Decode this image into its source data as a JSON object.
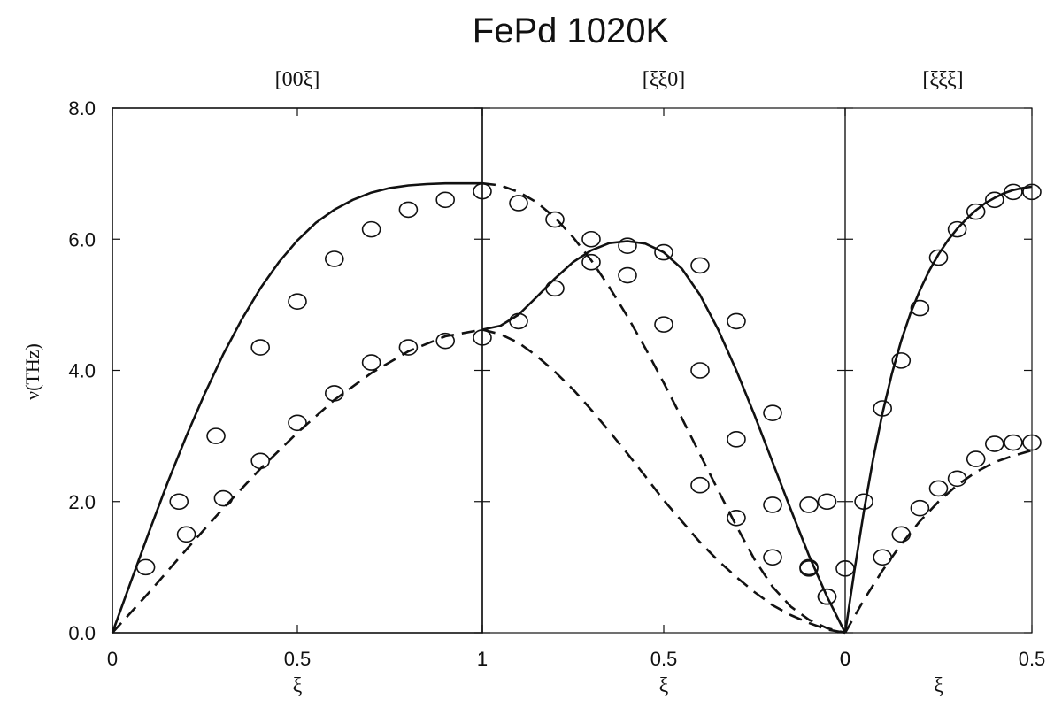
{
  "chart_data": {
    "type": "scatter",
    "title": "FePd 1020K",
    "ylabel": "ν(THz)",
    "ylim": [
      0,
      8
    ],
    "yticks": [
      "0.0",
      "2.0",
      "4.0",
      "6.0",
      "8.0"
    ],
    "grid": false,
    "legend": "none",
    "panels": [
      {
        "label": "[00ξ]",
        "xlabel": "ξ",
        "xlim": [
          0,
          1
        ],
        "xtick_labels": [
          "0",
          "0.5",
          "1"
        ],
        "series": [
          {
            "style": "solid",
            "x": [
              0,
              0.05,
              0.1,
              0.15,
              0.2,
              0.25,
              0.3,
              0.35,
              0.4,
              0.45,
              0.5,
              0.55,
              0.6,
              0.65,
              0.7,
              0.75,
              0.8,
              0.85,
              0.9,
              0.95,
              1.0
            ],
            "y": [
              0,
              0.78,
              1.55,
              2.3,
              3.0,
              3.65,
              4.25,
              4.78,
              5.25,
              5.65,
              5.98,
              6.25,
              6.45,
              6.6,
              6.71,
              6.78,
              6.82,
              6.84,
              6.85,
              6.85,
              6.85
            ]
          },
          {
            "style": "dashed",
            "x": [
              0,
              0.1,
              0.2,
              0.3,
              0.4,
              0.5,
              0.6,
              0.7,
              0.8,
              0.9,
              1.0
            ],
            "y": [
              0,
              0.62,
              1.27,
              1.9,
              2.5,
              3.05,
              3.55,
              3.96,
              4.29,
              4.52,
              4.62
            ]
          },
          {
            "style": "circle",
            "x": [
              0.09,
              0.18,
              0.28,
              0.4,
              0.5,
              0.6,
              0.7,
              0.8,
              0.9,
              1.0
            ],
            "y": [
              1.0,
              2.0,
              3.0,
              4.35,
              5.05,
              5.7,
              6.15,
              6.45,
              6.6,
              6.73
            ]
          },
          {
            "style": "circle",
            "x": [
              0.2,
              0.3,
              0.4,
              0.5,
              0.6,
              0.7,
              0.8,
              0.9,
              1.0
            ],
            "y": [
              1.5,
              2.05,
              2.62,
              3.2,
              3.65,
              4.12,
              4.35,
              4.45,
              4.5
            ]
          }
        ]
      },
      {
        "label": "[ξξ0]",
        "xlabel": "ξ",
        "xlim": [
          1,
          0
        ],
        "xtick_labels": [
          "1",
          "0.5",
          "0"
        ],
        "series": [
          {
            "style": "dashed",
            "x": [
              1.0,
              0.95,
              0.9,
              0.85,
              0.8,
              0.75,
              0.7,
              0.65,
              0.6,
              0.55,
              0.5,
              0.45,
              0.4,
              0.35,
              0.3,
              0.25,
              0.2,
              0.15,
              0.1,
              0.05,
              0.0
            ],
            "y": [
              6.85,
              6.82,
              6.72,
              6.56,
              6.33,
              6.03,
              5.68,
              5.27,
              4.82,
              4.33,
              3.81,
              3.27,
              2.72,
              2.17,
              1.63,
              1.12,
              0.7,
              0.4,
              0.2,
              0.07,
              0.0
            ]
          },
          {
            "style": "dashed",
            "x": [
              1.0,
              0.95,
              0.9,
              0.85,
              0.8,
              0.75,
              0.7,
              0.65,
              0.6,
              0.55,
              0.5,
              0.45,
              0.4,
              0.35,
              0.3,
              0.25,
              0.2,
              0.15,
              0.1,
              0.05,
              0.0
            ],
            "y": [
              4.62,
              4.55,
              4.42,
              4.22,
              3.98,
              3.71,
              3.4,
              3.07,
              2.73,
              2.38,
              2.02,
              1.7,
              1.38,
              1.1,
              0.85,
              0.62,
              0.42,
              0.27,
              0.15,
              0.05,
              0.0
            ]
          },
          {
            "style": "solid",
            "x": [
              1.0,
              0.95,
              0.9,
              0.85,
              0.8,
              0.75,
              0.7,
              0.65,
              0.6,
              0.55,
              0.5,
              0.45,
              0.4,
              0.35,
              0.3,
              0.25,
              0.2,
              0.15,
              0.1,
              0.05,
              0.0
            ],
            "y": [
              4.62,
              4.68,
              4.85,
              5.12,
              5.4,
              5.65,
              5.83,
              5.94,
              5.97,
              5.93,
              5.8,
              5.55,
              5.15,
              4.62,
              4.0,
              3.32,
              2.6,
              1.88,
              1.18,
              0.55,
              0.0
            ]
          },
          {
            "style": "circle",
            "x": [
              0.9,
              0.8,
              0.7,
              0.6,
              0.5,
              0.4,
              0.3,
              0.2,
              0.1,
              0.05
            ],
            "y": [
              6.55,
              6.3,
              6.0,
              5.45,
              4.7,
              4.0,
              2.95,
              1.95,
              1.0,
              0.55
            ]
          },
          {
            "style": "circle",
            "x": [
              0.9,
              0.8,
              0.7,
              0.6,
              0.5,
              0.4,
              0.3,
              0.2,
              0.1,
              0.05
            ],
            "y": [
              4.75,
              5.25,
              5.65,
              5.9,
              5.8,
              5.6,
              4.75,
              3.35,
              1.95,
              2.0
            ]
          },
          {
            "style": "circle",
            "x": [
              0.4,
              0.3,
              0.2,
              0.1,
              0.05,
              0.0
            ],
            "y": [
              2.25,
              1.75,
              1.15,
              0.98,
              0.55,
              0.98
            ]
          }
        ]
      },
      {
        "label": "[ξξξ]",
        "xlabel": "ξ",
        "xlim": [
          0,
          0.5
        ],
        "xtick_labels": [
          "0",
          "0.5"
        ],
        "series": [
          {
            "style": "solid",
            "x": [
              0,
              0.025,
              0.05,
              0.075,
              0.1,
              0.125,
              0.15,
              0.175,
              0.2,
              0.225,
              0.25,
              0.275,
              0.3,
              0.325,
              0.35,
              0.375,
              0.4,
              0.425,
              0.45,
              0.475,
              0.5
            ],
            "y": [
              0,
              0.95,
              1.85,
              2.65,
              3.35,
              3.95,
              4.45,
              4.87,
              5.22,
              5.52,
              5.77,
              5.98,
              6.16,
              6.31,
              6.44,
              6.55,
              6.63,
              6.7,
              6.75,
              6.78,
              6.8
            ]
          },
          {
            "style": "dashed",
            "x": [
              0,
              0.05,
              0.1,
              0.15,
              0.2,
              0.25,
              0.3,
              0.35,
              0.4,
              0.45,
              0.5
            ],
            "y": [
              0,
              0.5,
              0.95,
              1.35,
              1.7,
              2.0,
              2.25,
              2.45,
              2.6,
              2.7,
              2.78
            ]
          },
          {
            "style": "circle",
            "x": [
              0.05,
              0.1,
              0.15,
              0.2,
              0.25,
              0.3,
              0.35,
              0.4,
              0.45,
              0.5
            ],
            "y": [
              2.0,
              3.42,
              4.15,
              4.95,
              5.72,
              6.15,
              6.42,
              6.6,
              6.72,
              6.72
            ]
          },
          {
            "style": "circle",
            "x": [
              0.1,
              0.15,
              0.2,
              0.25,
              0.3,
              0.35,
              0.4,
              0.45,
              0.5
            ],
            "y": [
              1.15,
              1.5,
              1.9,
              2.2,
              2.35,
              2.65,
              2.88,
              2.9,
              2.9
            ]
          }
        ]
      }
    ]
  }
}
